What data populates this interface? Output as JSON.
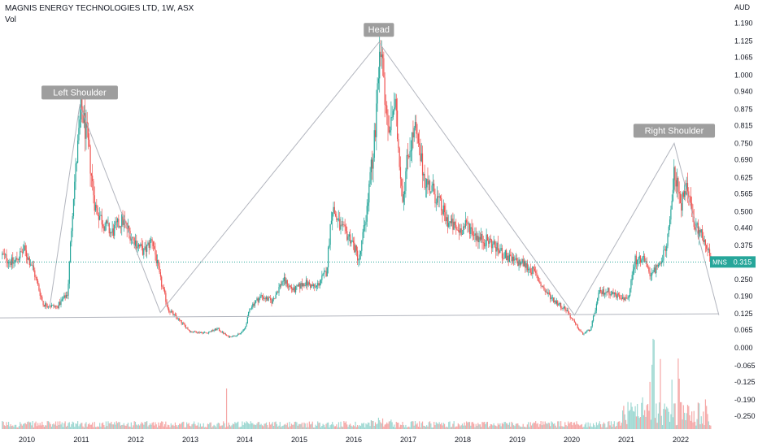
{
  "header": {
    "title": "MAGNIS ENERGY TECHNOLOGIES LTD, 1W, ASX",
    "volume_label": "Vol"
  },
  "chart_data": {
    "type": "candlestick",
    "symbol": "MNS",
    "interval": "1W",
    "exchange": "ASX",
    "currency": "AUD",
    "last_price": "0.315",
    "ylim": [
      -0.28,
      1.21
    ],
    "y_ticks": [
      "1.190",
      "1.125",
      "1.065",
      "1.000",
      "0.940",
      "0.875",
      "0.815",
      "0.750",
      "0.690",
      "0.625",
      "0.565",
      "0.500",
      "0.440",
      "0.375",
      "0.310",
      "0.250",
      "0.190",
      "0.125",
      "0.065",
      "0.000",
      "-0.065",
      "-0.125",
      "-0.190",
      "-0.250"
    ],
    "x_ticks": [
      {
        "label": "2010",
        "year": 2010
      },
      {
        "label": "2011",
        "year": 2011
      },
      {
        "label": "2012",
        "year": 2012
      },
      {
        "label": "2013",
        "year": 2013
      },
      {
        "label": "2014",
        "year": 2014
      },
      {
        "label": "2015",
        "year": 2015
      },
      {
        "label": "2016",
        "year": 2016
      },
      {
        "label": "2017",
        "year": 2017
      },
      {
        "label": "2018",
        "year": 2018
      },
      {
        "label": "2019",
        "year": 2019
      },
      {
        "label": "2020",
        "year": 2020
      },
      {
        "label": "2021",
        "year": 2021
      },
      {
        "label": "2022",
        "year": 2022
      }
    ],
    "price_path": [
      [
        2009.55,
        0.34
      ],
      [
        2009.75,
        0.31
      ],
      [
        2009.95,
        0.36
      ],
      [
        2010.1,
        0.3
      ],
      [
        2010.3,
        0.16
      ],
      [
        2010.55,
        0.15
      ],
      [
        2010.75,
        0.2
      ],
      [
        2010.85,
        0.55
      ],
      [
        2011.0,
        0.88
      ],
      [
        2011.12,
        0.75
      ],
      [
        2011.25,
        0.52
      ],
      [
        2011.4,
        0.46
      ],
      [
        2011.55,
        0.42
      ],
      [
        2011.75,
        0.47
      ],
      [
        2011.95,
        0.4
      ],
      [
        2012.15,
        0.35
      ],
      [
        2012.3,
        0.4
      ],
      [
        2012.45,
        0.25
      ],
      [
        2012.6,
        0.14
      ],
      [
        2012.8,
        0.1
      ],
      [
        2013.0,
        0.06
      ],
      [
        2013.3,
        0.055
      ],
      [
        2013.5,
        0.07
      ],
      [
        2013.7,
        0.04
      ],
      [
        2013.9,
        0.05
      ],
      [
        2014.0,
        0.07
      ],
      [
        2014.1,
        0.15
      ],
      [
        2014.3,
        0.19
      ],
      [
        2014.5,
        0.17
      ],
      [
        2014.7,
        0.25
      ],
      [
        2014.9,
        0.21
      ],
      [
        2015.1,
        0.24
      ],
      [
        2015.3,
        0.22
      ],
      [
        2015.5,
        0.28
      ],
      [
        2015.6,
        0.52
      ],
      [
        2015.75,
        0.44
      ],
      [
        2015.95,
        0.4
      ],
      [
        2016.1,
        0.32
      ],
      [
        2016.25,
        0.52
      ],
      [
        2016.4,
        0.82
      ],
      [
        2016.5,
        1.1
      ],
      [
        2016.62,
        0.78
      ],
      [
        2016.75,
        0.9
      ],
      [
        2016.9,
        0.55
      ],
      [
        2017.0,
        0.72
      ],
      [
        2017.12,
        0.8
      ],
      [
        2017.3,
        0.62
      ],
      [
        2017.5,
        0.56
      ],
      [
        2017.7,
        0.47
      ],
      [
        2017.9,
        0.43
      ],
      [
        2018.1,
        0.45
      ],
      [
        2018.3,
        0.4
      ],
      [
        2018.5,
        0.39
      ],
      [
        2018.7,
        0.35
      ],
      [
        2018.9,
        0.32
      ],
      [
        2019.1,
        0.31
      ],
      [
        2019.3,
        0.28
      ],
      [
        2019.5,
        0.21
      ],
      [
        2019.7,
        0.17
      ],
      [
        2019.9,
        0.14
      ],
      [
        2020.05,
        0.09
      ],
      [
        2020.2,
        0.05
      ],
      [
        2020.35,
        0.07
      ],
      [
        2020.5,
        0.2
      ],
      [
        2020.65,
        0.21
      ],
      [
        2020.85,
        0.19
      ],
      [
        2021.05,
        0.18
      ],
      [
        2021.15,
        0.32
      ],
      [
        2021.3,
        0.33
      ],
      [
        2021.45,
        0.27
      ],
      [
        2021.6,
        0.3
      ],
      [
        2021.75,
        0.37
      ],
      [
        2021.88,
        0.65
      ],
      [
        2022.0,
        0.52
      ],
      [
        2022.12,
        0.6
      ],
      [
        2022.25,
        0.44
      ],
      [
        2022.4,
        0.42
      ],
      [
        2022.55,
        0.315
      ]
    ],
    "annotations": [
      {
        "label": "Left Shoulder",
        "x": 2010.97,
        "y": 0.89
      },
      {
        "label": "Head",
        "x": 2016.46,
        "y": 1.12
      },
      {
        "label": "Right Shoulder",
        "x": 2021.88,
        "y": 0.75
      }
    ],
    "pattern_lines": [
      [
        [
          2010.42,
          0.15
        ],
        [
          2010.97,
          0.89
        ],
        [
          2012.45,
          0.13
        ],
        [
          2016.46,
          1.12
        ],
        [
          2020.05,
          0.12
        ],
        [
          2021.88,
          0.75
        ],
        [
          2022.7,
          0.12
        ]
      ]
    ],
    "neckline": [
      [
        2009.5,
        0.11
      ],
      [
        2022.7,
        0.125
      ]
    ],
    "colors": {
      "up": "#26a69a",
      "down": "#ef5350",
      "vol_up": "#9ed8d2",
      "vol_down": "#f5a8a7",
      "price_label": "#26a69a",
      "annotation_bg": "#9e9e9e",
      "pattern_line": "#b2b5be"
    }
  }
}
